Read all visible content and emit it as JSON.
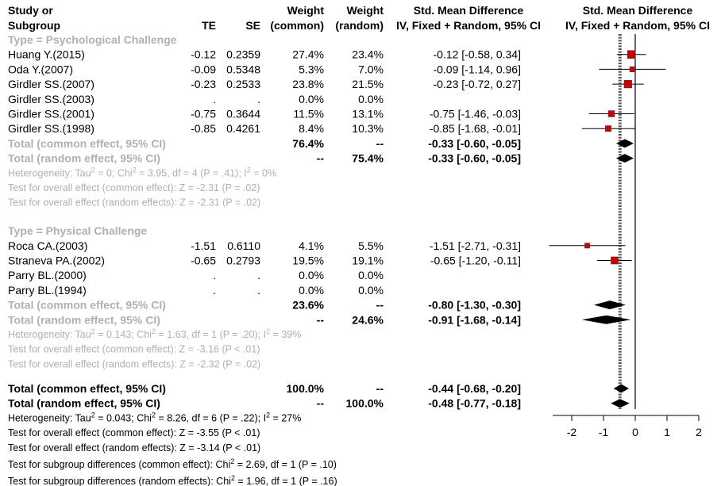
{
  "chart_data": {
    "type": "forest",
    "header": {
      "study_1": "Study or",
      "study_2": "Subgroup",
      "te": "TE",
      "se": "SE",
      "wc_1": "Weight",
      "wc_2": "(common)",
      "wr_1": "Weight",
      "wr_2": "(random)",
      "ci_1": "Std. Mean Difference",
      "ci_2": "IV, Fixed + Random, 95% CI",
      "plot_1": "Std. Mean Difference",
      "plot_2": "IV, Fixed + Random, 95% CI"
    },
    "groups": [
      {
        "label": "Type = Psychological Challenge",
        "studies": [
          {
            "name": "Huang Y.(2015)",
            "te": "-0.12",
            "se": "0.2359",
            "wc": "27.4%",
            "wr": "23.4%",
            "ci": "-0.12 [-0.58,  0.34]",
            "est": -0.12,
            "lo": -0.58,
            "hi": 0.34,
            "w": 27.4
          },
          {
            "name": "Oda Y.(2007)",
            "te": "-0.09",
            "se": "0.5348",
            "wc": "5.3%",
            "wr": "7.0%",
            "ci": "-0.09 [-1.14,  0.96]",
            "est": -0.09,
            "lo": -1.14,
            "hi": 0.96,
            "w": 5.3
          },
          {
            "name": "Girdler SS.(2007)",
            "te": "-0.23",
            "se": "0.2533",
            "wc": "23.8%",
            "wr": "21.5%",
            "ci": "-0.23 [-0.72,  0.27]",
            "est": -0.23,
            "lo": -0.72,
            "hi": 0.27,
            "w": 23.8
          },
          {
            "name": "Girdler SS.(2003)",
            "te": ".",
            "se": ".",
            "wc": "0.0%",
            "wr": "0.0%",
            "ci": "",
            "est": null,
            "lo": null,
            "hi": null,
            "w": 0
          },
          {
            "name": "Girdler SS.(2001)",
            "te": "-0.75",
            "se": "0.3644",
            "wc": "11.5%",
            "wr": "13.1%",
            "ci": "-0.75 [-1.46, -0.03]",
            "est": -0.75,
            "lo": -1.46,
            "hi": -0.03,
            "w": 11.5
          },
          {
            "name": "Girdler SS.(1998)",
            "te": "-0.85",
            "se": "0.4261",
            "wc": "8.4%",
            "wr": "10.3%",
            "ci": "-0.85 [-1.68, -0.01]",
            "est": -0.85,
            "lo": -1.68,
            "hi": -0.01,
            "w": 8.4
          }
        ],
        "total_common": {
          "label": "Total (common effect, 95% CI)",
          "wc": "76.4%",
          "wr": "--",
          "ci": "-0.33 [-0.60, -0.05]",
          "est": -0.33,
          "lo": -0.6,
          "hi": -0.05
        },
        "total_random": {
          "label": "Total (random effect, 95% CI)",
          "wc": "--",
          "wr": "75.4%",
          "ci": "-0.33 [-0.60, -0.05]",
          "est": -0.33,
          "lo": -0.6,
          "hi": -0.05
        },
        "notes": [
          {
            "pre": "Heterogeneity: Tau",
            "s1": "2",
            "mid": " = 0; Chi",
            "s2": "2",
            "post": " = 3.95, df = 4 (P = .41); I",
            "s3": "2",
            "end": " = 0%"
          },
          {
            "pre": "Test for overall effect (common effect): Z = -2.31 (P = .02)"
          },
          {
            "pre": "Test for overall effect (random effects): Z = -2.31 (P = .02)"
          }
        ]
      },
      {
        "label": "Type = Physical Challenge",
        "studies": [
          {
            "name": "Roca CA.(2003)",
            "te": "-1.51",
            "se": "0.6110",
            "wc": "4.1%",
            "wr": "5.5%",
            "ci": "-1.51 [-2.71, -0.31]",
            "est": -1.51,
            "lo": -2.71,
            "hi": -0.31,
            "w": 4.1
          },
          {
            "name": "Straneva PA.(2002)",
            "te": "-0.65",
            "se": "0.2793",
            "wc": "19.5%",
            "wr": "19.1%",
            "ci": "-0.65 [-1.20, -0.11]",
            "est": -0.65,
            "lo": -1.2,
            "hi": -0.11,
            "w": 19.5
          },
          {
            "name": "Parry BL.(2000)",
            "te": ".",
            "se": ".",
            "wc": "0.0%",
            "wr": "0.0%",
            "ci": "",
            "est": null,
            "lo": null,
            "hi": null,
            "w": 0
          },
          {
            "name": "Parry BL.(1994)",
            "te": ".",
            "se": ".",
            "wc": "0.0%",
            "wr": "0.0%",
            "ci": "",
            "est": null,
            "lo": null,
            "hi": null,
            "w": 0
          }
        ],
        "total_common": {
          "label": "Total (common effect, 95% CI)",
          "wc": "23.6%",
          "wr": "--",
          "ci": "-0.80 [-1.30, -0.30]",
          "est": -0.8,
          "lo": -1.3,
          "hi": -0.3
        },
        "total_random": {
          "label": "Total (random effect, 95% CI)",
          "wc": "--",
          "wr": "24.6%",
          "ci": "-0.91 [-1.68, -0.14]",
          "est": -0.91,
          "lo": -1.68,
          "hi": -0.14
        },
        "notes": [
          {
            "pre": "Heterogeneity: Tau",
            "s1": "2",
            "mid": " = 0.143; Chi",
            "s2": "2",
            "post": " = 1.63, df = 1 (P = .20); I",
            "s3": "2",
            "end": " = 39%"
          },
          {
            "pre": "Test for overall effect (common effect): Z = -3.16 (P < .01)"
          },
          {
            "pre": "Test for overall effect (random effects): Z = -2.32 (P = .02)"
          }
        ]
      }
    ],
    "overall": {
      "total_common": {
        "label": "Total (common effect, 95% CI)",
        "wc": "100.0%",
        "wr": "--",
        "ci": "-0.44 [-0.68, -0.20]",
        "est": -0.44,
        "lo": -0.68,
        "hi": -0.2
      },
      "total_random": {
        "label": "Total (random effect, 95% CI)",
        "wc": "--",
        "wr": "100.0%",
        "ci": "-0.48 [-0.77, -0.18]",
        "est": -0.48,
        "lo": -0.77,
        "hi": -0.18
      },
      "notes": [
        {
          "pre": "Heterogeneity: Tau",
          "s1": "2",
          "mid": " = 0.043; Chi",
          "s2": "2",
          "post": " = 8.26, df = 6 (P = .22); I",
          "s3": "2",
          "end": " = 27%"
        },
        {
          "pre": "Test for overall effect (common effect): Z = -3.55 (P < .01)"
        },
        {
          "pre": "Test for overall effect (random effects): Z = -3.14 (P < .01)"
        },
        {
          "pre": "Test for subgroup differences (common effect): Chi",
          "s1": "2",
          "mid": " = 2.69, df = 1 (P = .10)"
        },
        {
          "pre": "Test for subgroup differences (random effects): Chi",
          "s1": "2",
          "mid": " = 1.96, df = 1 (P = .16)"
        }
      ]
    },
    "x_axis": {
      "ticks": [
        -2,
        -1,
        0,
        1,
        2
      ],
      "tick_labels": [
        "-2",
        "-1",
        "0",
        "1",
        "2"
      ],
      "xlim": [
        -2.6,
        2.0
      ]
    },
    "reference_line": 0,
    "colors": {
      "square": "#cc0000",
      "diamond": "#000000",
      "subgroup_text": "#b0b0b0"
    }
  }
}
